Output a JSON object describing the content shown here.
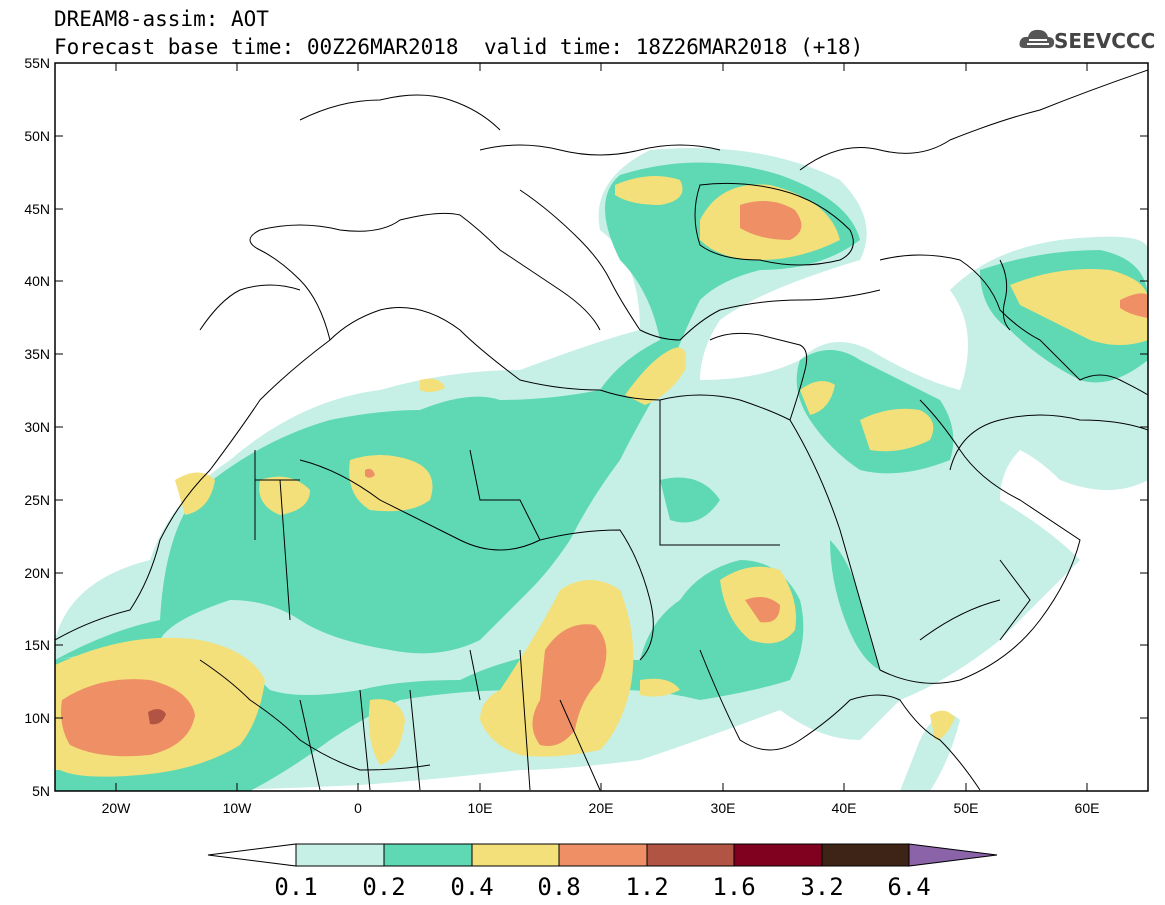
{
  "header": {
    "title": "DREAM8-assim: AOT",
    "base_time": "Forecast base time: 00Z26MAR2018",
    "valid_time": "valid time: 18Z26MAR2018 (+18)"
  },
  "logo": {
    "text": "SEEVCCC",
    "icon": "cloud-icon"
  },
  "map": {
    "lon_range": [
      -25,
      65
    ],
    "lat_range": [
      5,
      55
    ],
    "lat_labels": [
      "55N",
      "50N",
      "45N",
      "40N",
      "35N",
      "30N",
      "25N",
      "20N",
      "15N",
      "10N",
      "5N"
    ],
    "lon_labels": [
      "20W",
      "10W",
      "0",
      "10E",
      "20E",
      "30E",
      "40E",
      "50E",
      "60E"
    ]
  },
  "colorbar": {
    "levels": [
      "0.1",
      "0.2",
      "0.4",
      "0.8",
      "1.2",
      "1.6",
      "3.2",
      "6.4"
    ],
    "colors": [
      "#ffffff",
      "#c6efe6",
      "#5ed9b3",
      "#f4e07a",
      "#ee8f66",
      "#b25443",
      "#800020",
      "#3e2416",
      "#8a63a8"
    ]
  }
}
